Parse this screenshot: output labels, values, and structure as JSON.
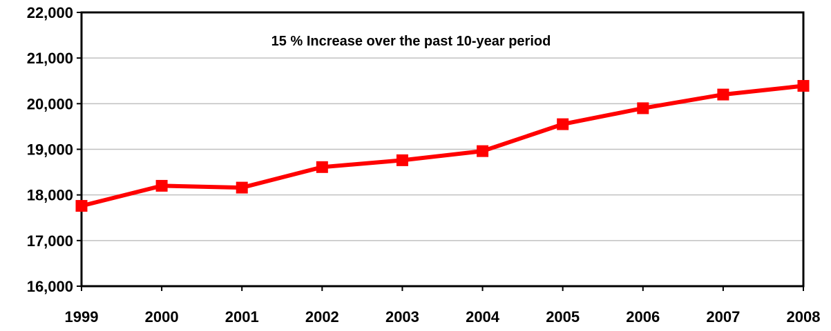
{
  "chart_data": {
    "type": "line",
    "title": "",
    "annotation": "15 % Increase over the past 10-year period",
    "xlabel": "",
    "ylabel": "",
    "categories": [
      "1999",
      "2000",
      "2001",
      "2002",
      "2003",
      "2004",
      "2005",
      "2006",
      "2007",
      "2008"
    ],
    "series": [
      {
        "values": [
          17760,
          18200,
          18160,
          18610,
          18760,
          18960,
          19550,
          19900,
          20200,
          20390
        ]
      }
    ],
    "ylim": [
      16000,
      22000
    ],
    "yticks": [
      16000,
      17000,
      18000,
      19000,
      20000,
      21000,
      22000
    ],
    "ytick_labels": [
      "16,000",
      "17,000",
      "18,000",
      "19,000",
      "20,000",
      "21,000",
      "22,000"
    ],
    "grid": true,
    "legend": "none",
    "colors": {
      "line": "#ff0000",
      "grid": "#c0c0c0",
      "axis": "#000000"
    }
  }
}
